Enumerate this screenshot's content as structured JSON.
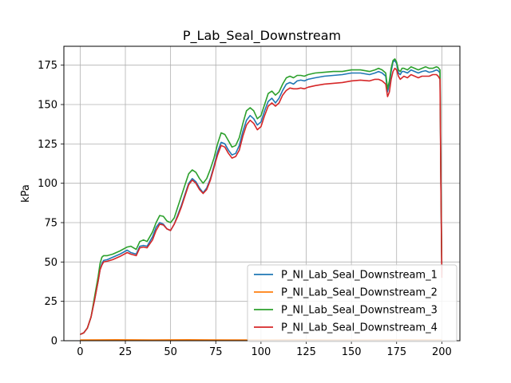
{
  "chart_data": {
    "type": "line",
    "title": "P_Lab_Seal_Downstream",
    "xlabel": "",
    "ylabel": "kPa",
    "xlim": [
      -9,
      210
    ],
    "ylim": [
      0,
      187
    ],
    "xticks": [
      0,
      25,
      50,
      75,
      100,
      125,
      150,
      175,
      200
    ],
    "yticks": [
      0,
      25,
      50,
      75,
      100,
      125,
      150,
      175
    ],
    "grid": true,
    "legend_position": "lower-right",
    "series": [
      {
        "name": "P_NI_Lab_Seal_Downstream_1",
        "color": "#1f77b4",
        "x": [
          0,
          2,
          4,
          6,
          8,
          10,
          11,
          12,
          13,
          15,
          18,
          22,
          26,
          28,
          31,
          33,
          35,
          37,
          40,
          42,
          44,
          46,
          48,
          50,
          52,
          54,
          56,
          58,
          60,
          62,
          64,
          66,
          68,
          70,
          72,
          74,
          76,
          78,
          80,
          82,
          84,
          86,
          88,
          90,
          92,
          94,
          96,
          98,
          100,
          102,
          104,
          106,
          108,
          110,
          112,
          114,
          116,
          118,
          120,
          122,
          124,
          126,
          130,
          135,
          140,
          145,
          150,
          155,
          160,
          163,
          165,
          167,
          169,
          170,
          171,
          172,
          173,
          174,
          175,
          176,
          177,
          178,
          179,
          181,
          183,
          185,
          187,
          189,
          191,
          193,
          195,
          197,
          198,
          199,
          199.5,
          200
        ],
        "y": [
          4,
          5,
          8,
          15,
          26,
          38,
          45,
          49,
          51,
          51.5,
          53,
          55,
          57.5,
          56,
          55,
          60,
          60.5,
          60,
          66,
          72,
          75,
          74,
          71,
          70,
          74,
          80,
          86,
          93,
          100,
          103,
          101,
          97,
          94,
          97,
          103,
          111,
          120,
          126,
          125,
          121,
          118,
          119,
          124,
          133,
          140,
          143,
          141,
          137,
          139,
          146,
          152,
          154,
          151,
          154,
          159,
          163,
          164,
          163,
          165,
          165.5,
          165,
          166,
          167,
          168,
          168.5,
          169,
          170,
          170,
          169,
          170,
          171,
          170,
          168,
          158,
          163,
          171,
          177,
          178,
          176,
          170,
          169,
          171,
          171,
          170,
          172,
          171,
          170,
          171,
          171.5,
          170.5,
          171,
          172,
          171.5,
          170,
          100,
          42
        ]
      },
      {
        "name": "P_NI_Lab_Seal_Downstream_2",
        "color": "#ff7f0e",
        "x": [
          0,
          20,
          40,
          60,
          80,
          100,
          120,
          140,
          160,
          180,
          200
        ],
        "y": [
          0.5,
          0.6,
          0.5,
          0.6,
          0.5,
          0.5,
          0.6,
          0.5,
          0.5,
          0.6,
          0.5
        ]
      },
      {
        "name": "P_NI_Lab_Seal_Downstream_3",
        "color": "#2ca02c",
        "x": [
          0,
          2,
          4,
          6,
          8,
          10,
          11,
          12,
          13,
          15,
          18,
          22,
          26,
          28,
          31,
          33,
          35,
          37,
          40,
          42,
          44,
          46,
          48,
          50,
          52,
          54,
          56,
          58,
          60,
          62,
          64,
          66,
          68,
          70,
          72,
          74,
          76,
          78,
          80,
          82,
          84,
          86,
          88,
          90,
          92,
          94,
          96,
          98,
          100,
          102,
          104,
          106,
          108,
          110,
          112,
          114,
          116,
          118,
          120,
          122,
          124,
          126,
          130,
          135,
          140,
          145,
          150,
          155,
          160,
          163,
          165,
          167,
          169,
          170,
          171,
          172,
          173,
          174,
          175,
          176,
          177,
          178,
          179,
          181,
          183,
          185,
          187,
          189,
          191,
          193,
          195,
          197,
          198,
          199,
          199.5,
          200
        ],
        "y": [
          4,
          5,
          8,
          15,
          28,
          41,
          49,
          53,
          54,
          54,
          55,
          57,
          59.5,
          60,
          58,
          63,
          64,
          63,
          69,
          75,
          79.5,
          79,
          76,
          75,
          78,
          85,
          92,
          99,
          106,
          108.5,
          107,
          103,
          100,
          103,
          109,
          116,
          125,
          132,
          131,
          127,
          123,
          124,
          129,
          138,
          146,
          148,
          146,
          141,
          143,
          150,
          157,
          158.5,
          156,
          158,
          163,
          167,
          168,
          167,
          168.5,
          168.5,
          168,
          169,
          170,
          170.5,
          171,
          171,
          172,
          172,
          171,
          172,
          173,
          172,
          170,
          160,
          165,
          173,
          178,
          179,
          177,
          172,
          171,
          173,
          173,
          172,
          174,
          173,
          172,
          173,
          174,
          173,
          173,
          174,
          173.5,
          172,
          102,
          44
        ]
      },
      {
        "name": "P_NI_Lab_Seal_Downstream_4",
        "color": "#d62728",
        "x": [
          0,
          2,
          4,
          6,
          8,
          10,
          11,
          12,
          13,
          15,
          18,
          22,
          26,
          28,
          31,
          33,
          35,
          37,
          40,
          42,
          44,
          46,
          48,
          50,
          52,
          54,
          56,
          58,
          60,
          62,
          64,
          66,
          68,
          70,
          72,
          74,
          76,
          78,
          80,
          82,
          84,
          86,
          88,
          90,
          92,
          94,
          96,
          98,
          100,
          102,
          104,
          106,
          108,
          110,
          112,
          114,
          116,
          118,
          120,
          122,
          124,
          126,
          130,
          135,
          140,
          145,
          150,
          155,
          160,
          163,
          165,
          167,
          169,
          170,
          171,
          172,
          173,
          174,
          175,
          176,
          177,
          178,
          179,
          181,
          183,
          185,
          187,
          189,
          191,
          193,
          195,
          197,
          198,
          199,
          199.5,
          200
        ],
        "y": [
          4,
          5,
          8,
          15,
          26,
          38,
          45,
          48,
          50,
          50.5,
          51.5,
          53.5,
          56,
          55,
          54,
          59,
          59.5,
          59,
          64,
          70,
          74,
          73.5,
          71,
          70,
          74,
          79,
          85,
          92,
          99,
          102,
          100,
          96,
          93.5,
          96,
          102,
          110,
          118,
          124,
          123,
          119,
          116,
          117,
          121,
          130,
          137,
          140,
          138,
          134,
          136,
          143,
          149,
          151,
          149,
          151,
          156,
          159,
          160.5,
          160,
          160,
          160.5,
          160,
          161,
          162,
          163,
          163.5,
          164,
          165,
          165.5,
          165,
          166,
          166,
          165,
          163,
          155,
          158,
          166,
          171,
          173,
          172,
          168,
          166,
          167,
          168,
          167,
          169,
          168,
          167,
          168,
          168,
          168,
          169,
          169,
          168,
          166,
          98,
          40
        ]
      }
    ]
  }
}
